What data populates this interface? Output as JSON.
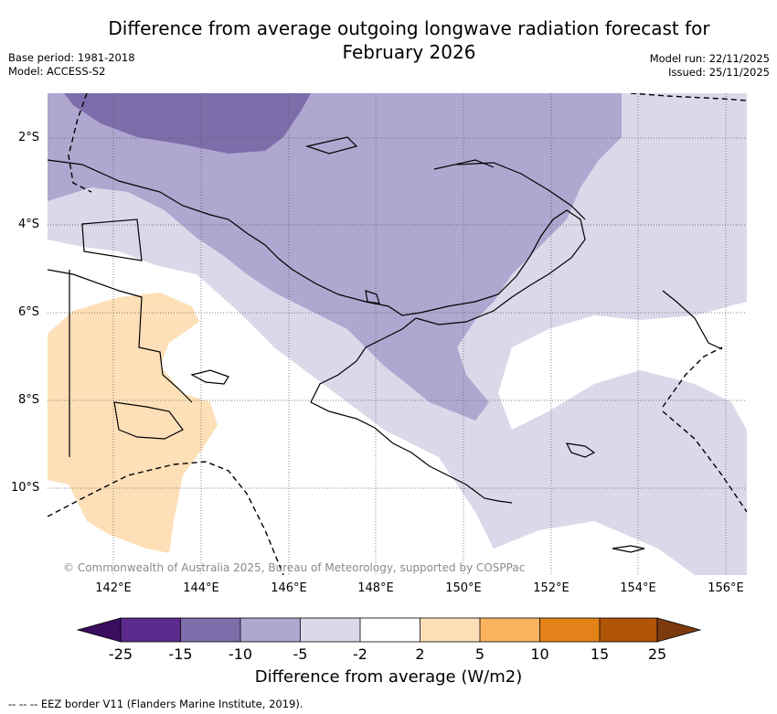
{
  "title_line1": "Difference from average outgoing longwave radiation forecast for",
  "title_line2": "February 2026",
  "base_period": "Base period: 1981-2018",
  "model": "Model: ACCESS-S2",
  "model_run": "Model run: 22/11/2025",
  "issued": "Issued: 25/11/2025",
  "lat_labels": [
    "2°S",
    "4°S",
    "6°S",
    "8°S",
    "10°S"
  ],
  "lon_labels": [
    "142°E",
    "144°E",
    "146°E",
    "148°E",
    "150°E",
    "152°E",
    "154°E",
    "156°E"
  ],
  "copyright": "© Commonwealth of Australia 2025, Bureau of Meteorology, supported by COSPPac",
  "colorbar": {
    "label": "Difference from average (W/m2)",
    "ticks": [
      "-25",
      "-15",
      "-10",
      "-5",
      "-2",
      "2",
      "5",
      "10",
      "15",
      "25"
    ],
    "bins": [
      {
        "range": "< -25",
        "color": "#3a0d5e"
      },
      {
        "range": "-25 to -15",
        "color": "#5b2a8c"
      },
      {
        "range": "-15 to -10",
        "color": "#7c6eaa"
      },
      {
        "range": "-10 to -5",
        "color": "#afa7d0"
      },
      {
        "range": "-5 to -2",
        "color": "#d9d9ea"
      },
      {
        "range": "-2 to 2",
        "color": "#ffffff"
      },
      {
        "range": "2 to 5",
        "color": "#fde0b8"
      },
      {
        "range": "5 to 10",
        "color": "#fbb35f"
      },
      {
        "range": "10 to 15",
        "color": "#e38218"
      },
      {
        "range": "15 to 25",
        "color": "#b05408"
      },
      {
        "range": "> 25",
        "color": "#7b3b0f"
      }
    ]
  },
  "footnote": "--  --  -- EEZ border V11 (Flanders Marine Institute, 2019)."
}
